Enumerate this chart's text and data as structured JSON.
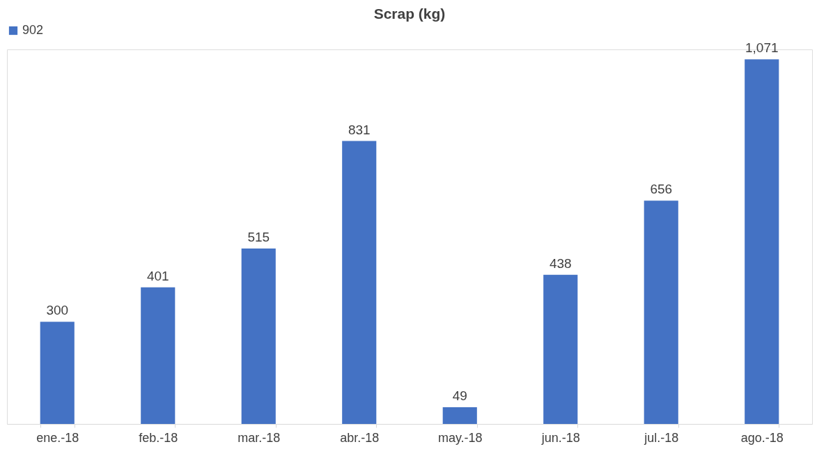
{
  "chart_data": {
    "type": "bar",
    "title": "Scrap (kg)",
    "categories": [
      "ene.-18",
      "feb.-18",
      "mar.-18",
      "abr.-18",
      "may.-18",
      "jun.-18",
      "jul.-18",
      "ago.-18"
    ],
    "series": [
      {
        "name": "902",
        "color": "#4472c4",
        "values": [
          300,
          401,
          515,
          831,
          49,
          438,
          656,
          1071
        ],
        "value_labels": [
          "300",
          "401",
          "515",
          "831",
          "49",
          "438",
          "656",
          "1,071"
        ]
      }
    ],
    "legend": "top",
    "grid": false
  }
}
